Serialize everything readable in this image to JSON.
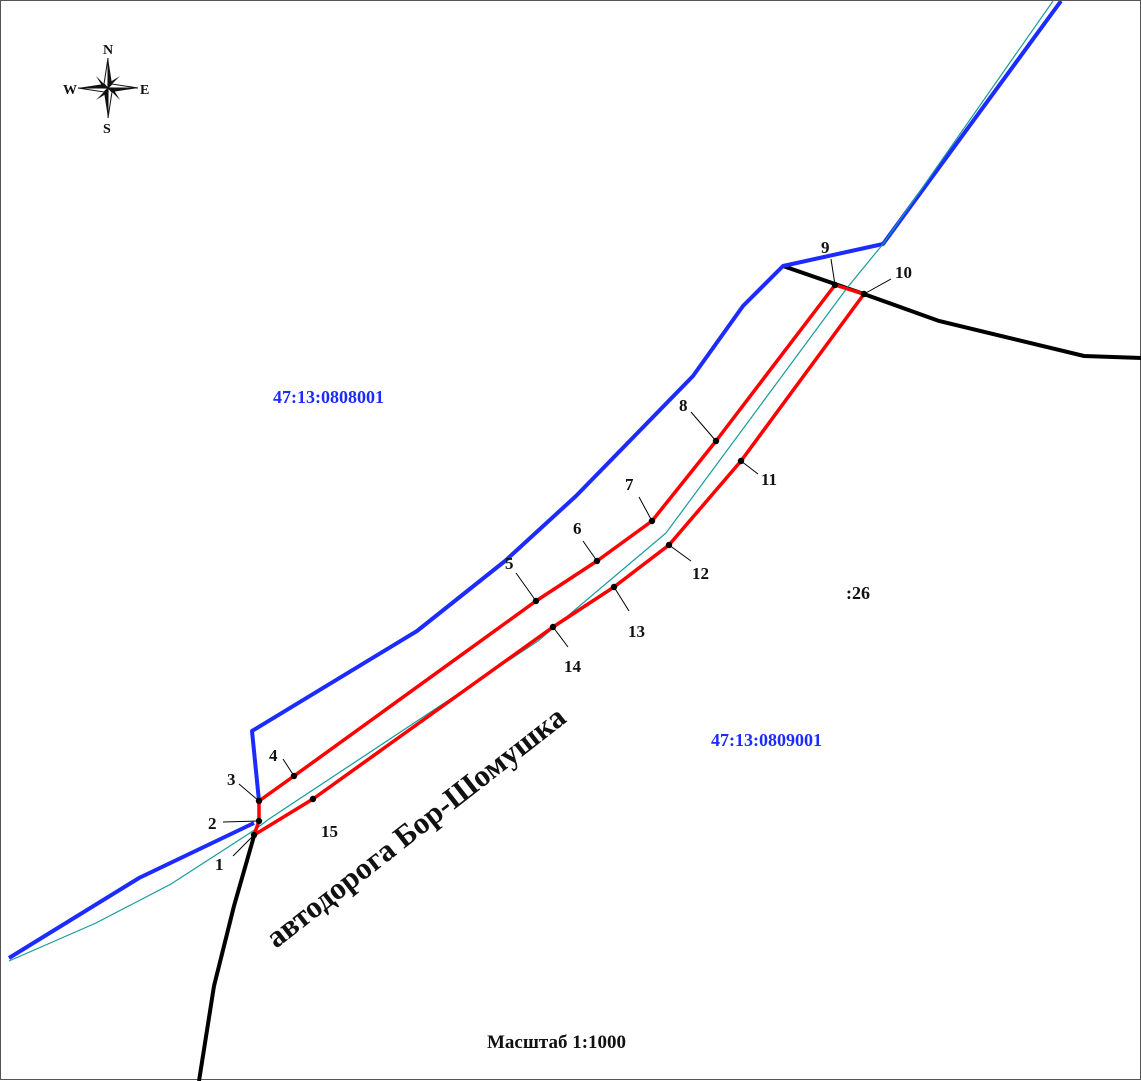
{
  "compass": {
    "north": "N",
    "south": "S",
    "east": "E",
    "west": "W"
  },
  "parcels": {
    "north_parcel": "47:13:0808001",
    "south_parcel": "47:13:0809001",
    "neighbor": ":26"
  },
  "road_name": "автодорога Бор-Шомушка",
  "scale": "Масштаб 1:1000",
  "points": [
    "1",
    "2",
    "3",
    "4",
    "5",
    "6",
    "7",
    "8",
    "9",
    "10",
    "11",
    "12",
    "13",
    "14",
    "15"
  ],
  "colors": {
    "boundary_blue": "#1c2bff",
    "plot_red": "#ff0000",
    "centerline": "#1a9a9a",
    "black_line": "#000000"
  }
}
